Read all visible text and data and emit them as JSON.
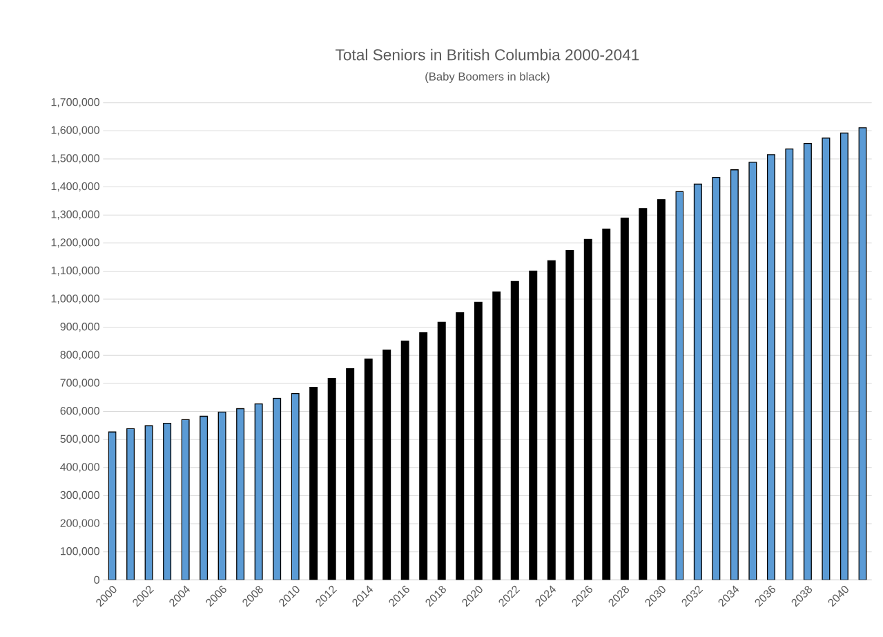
{
  "chart_data": {
    "type": "bar",
    "title": "Total Seniors in British Columbia 2000-2041",
    "subtitle": "(Baby Boomers in black)",
    "categories": [
      "2000",
      null,
      "2002",
      null,
      "2004",
      null,
      "2006",
      null,
      "2008",
      null,
      "2010",
      null,
      "2012",
      null,
      "2014",
      null,
      "2016",
      null,
      "2018",
      null,
      "2020",
      null,
      "2022",
      null,
      "2024",
      null,
      "2026",
      null,
      "2028",
      null,
      "2030",
      null,
      "2032",
      null,
      "2034",
      null,
      "2036",
      null,
      "2038",
      null,
      "2040",
      null
    ],
    "values": [
      527000,
      539000,
      549000,
      558000,
      571000,
      583000,
      598000,
      610000,
      627000,
      647000,
      664000,
      686000,
      718000,
      753000,
      787000,
      819000,
      851000,
      881000,
      918000,
      952000,
      989000,
      1026000,
      1063000,
      1100000,
      1137000,
      1173000,
      1213000,
      1250000,
      1289000,
      1323000,
      1355000,
      1383000,
      1410000,
      1434000,
      1461000,
      1488000,
      1515000,
      1535000,
      1555000,
      1574000,
      1592000,
      1611000
    ],
    "colors": [
      "#5b9bd5",
      "#5b9bd5",
      "#5b9bd5",
      "#5b9bd5",
      "#5b9bd5",
      "#5b9bd5",
      "#5b9bd5",
      "#5b9bd5",
      "#5b9bd5",
      "#5b9bd5",
      "#5b9bd5",
      "#000000",
      "#000000",
      "#000000",
      "#000000",
      "#000000",
      "#000000",
      "#000000",
      "#000000",
      "#000000",
      "#000000",
      "#000000",
      "#000000",
      "#000000",
      "#000000",
      "#000000",
      "#000000",
      "#000000",
      "#000000",
      "#000000",
      "#000000",
      "#5b9bd5",
      "#5b9bd5",
      "#5b9bd5",
      "#5b9bd5",
      "#5b9bd5",
      "#5b9bd5",
      "#5b9bd5",
      "#5b9bd5",
      "#5b9bd5",
      "#5b9bd5",
      "#5b9bd5"
    ],
    "ylim": [
      0,
      1700000
    ],
    "yticks": [
      0,
      {
        "value": 100000,
        "label": "100,000"
      },
      {
        "value": 200000,
        "label": "200,000"
      },
      {
        "value": 300000,
        "label": "300,000"
      },
      {
        "value": 400000,
        "label": "400,000"
      },
      {
        "value": 500000,
        "label": "500,000"
      },
      {
        "value": 600000,
        "label": "600,000"
      },
      {
        "value": 700000,
        "label": "700,000"
      },
      {
        "value": 800000,
        "label": "800,000"
      },
      {
        "value": 900000,
        "label": "900,000"
      },
      {
        "value": 1000000,
        "label": "1,000,000"
      },
      {
        "value": 1100000,
        "label": "1,100,000"
      },
      {
        "value": 1200000,
        "label": "1,200,000"
      },
      {
        "value": 1300000,
        "label": "1,300,000"
      },
      {
        "value": 1400000,
        "label": "1,400,000"
      },
      {
        "value": 1500000,
        "label": "1,500,000"
      },
      {
        "value": 1600000,
        "label": "1,600,000"
      },
      {
        "value": 1700000,
        "label": "1,700,000"
      }
    ],
    "grid": "y"
  }
}
